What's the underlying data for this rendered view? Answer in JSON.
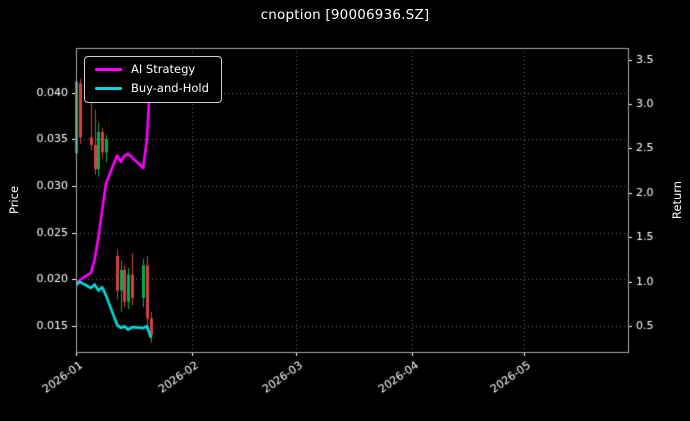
{
  "chart_data": {
    "type": "mixed",
    "subtype": [
      "candlestick",
      "line",
      "line"
    ],
    "title": "cnoption [90006936.SZ]",
    "ylabel": "Price",
    "ylabel_right": "Return",
    "grid": "dotted",
    "legend_position": "upper-left",
    "x_domain_days": [
      0,
      148
    ],
    "x_ticks": {
      "days": [
        0,
        31,
        59,
        90,
        120
      ],
      "labels": [
        "2026-01",
        "2026-02",
        "2026-03",
        "2026-04",
        "2026-05"
      ]
    },
    "y_left": {
      "ticks": [
        0.015,
        0.02,
        0.025,
        0.03,
        0.035,
        0.04
      ],
      "labels": [
        "0.015",
        "0.020",
        "0.025",
        "0.030",
        "0.035",
        "0.040"
      ],
      "domain": [
        0.0122,
        0.0448
      ]
    },
    "y_right": {
      "ticks": [
        0.5,
        1.0,
        1.5,
        2.0,
        2.5,
        3.0,
        3.5
      ],
      "labels": [
        "0.5",
        "1.0",
        "1.5",
        "2.0",
        "2.5",
        "3.0",
        "3.5"
      ],
      "domain": [
        0.21,
        3.63
      ]
    },
    "candles": {
      "axis": "left",
      "day": [
        0,
        1,
        4,
        5,
        6,
        7,
        8,
        11,
        12,
        13,
        14,
        15,
        18,
        19,
        20
      ],
      "open": [
        0.0335,
        0.041,
        0.0352,
        0.0344,
        0.0318,
        0.0358,
        0.0336,
        0.0225,
        0.0188,
        0.021,
        0.0176,
        0.0205,
        0.018,
        0.0215,
        0.0158
      ],
      "high": [
        0.0418,
        0.0415,
        0.04,
        0.0382,
        0.0368,
        0.0362,
        0.0355,
        0.0232,
        0.022,
        0.0215,
        0.0212,
        0.0228,
        0.0222,
        0.0225,
        0.0165
      ],
      "low": [
        0.0328,
        0.0345,
        0.0338,
        0.0312,
        0.031,
        0.033,
        0.0325,
        0.0178,
        0.0165,
        0.017,
        0.0168,
        0.0172,
        0.017,
        0.015,
        0.0132
      ],
      "close": [
        0.0412,
        0.0352,
        0.0344,
        0.0318,
        0.0358,
        0.0336,
        0.035,
        0.0188,
        0.021,
        0.0176,
        0.0205,
        0.018,
        0.0215,
        0.0158,
        0.014
      ]
    },
    "series": [
      {
        "name": "AI Strategy",
        "color": "#ff00ff",
        "axis": "right",
        "day": [
          0,
          1,
          4,
          5,
          6,
          7,
          8,
          11,
          12,
          13,
          14,
          15,
          18,
          19,
          20
        ],
        "values": [
          0.97,
          1.02,
          1.1,
          1.25,
          1.5,
          1.8,
          2.1,
          2.42,
          2.35,
          2.42,
          2.44,
          2.4,
          2.28,
          2.6,
          3.35
        ]
      },
      {
        "name": "Buy-and-Hold",
        "color": "#00dcdc",
        "axis": "right",
        "day": [
          0,
          1,
          4,
          5,
          6,
          7,
          8,
          11,
          12,
          13,
          14,
          15,
          18,
          19,
          20
        ],
        "values": [
          0.96,
          1.0,
          0.93,
          0.97,
          0.9,
          0.94,
          0.85,
          0.52,
          0.48,
          0.5,
          0.46,
          0.49,
          0.48,
          0.5,
          0.38
        ]
      }
    ],
    "colors": {
      "background": "#000000",
      "text": "#ffffff",
      "grid": "#6a6a6a",
      "spine": "#a8a8a8",
      "up": "#00b050",
      "down": "#d84040"
    }
  }
}
